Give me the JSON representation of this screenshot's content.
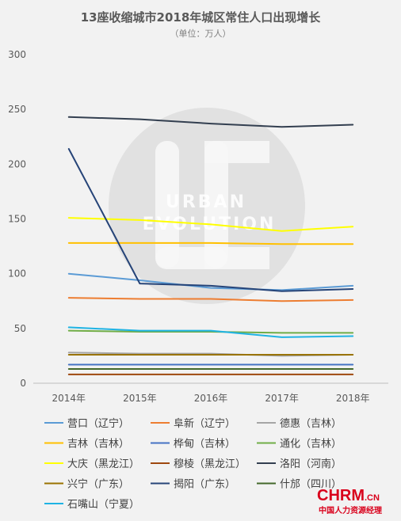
{
  "chart_data": {
    "type": "line",
    "title": "13座收缩城市2018年城区常住人口出现增长",
    "subtitle": "（单位：万人）",
    "categories": [
      "2014年",
      "2015年",
      "2016年",
      "2017年",
      "2018年"
    ],
    "ylim": [
      0,
      300
    ],
    "yticks": [
      0,
      50,
      100,
      150,
      200,
      250,
      300
    ],
    "grid": false,
    "legend_position": "bottom",
    "series": [
      {
        "name": "营口（辽宁）",
        "color": "#5b9bd5",
        "values": [
          100,
          94,
          87,
          85,
          89
        ]
      },
      {
        "name": "阜新（辽宁）",
        "color": "#ed7d31",
        "values": [
          78,
          77,
          77,
          75,
          76
        ]
      },
      {
        "name": "德惠（吉林）",
        "color": "#a5a5a5",
        "values": [
          28,
          27,
          27,
          25,
          26
        ]
      },
      {
        "name": "吉林（吉林）",
        "color": "#ffc000",
        "values": [
          128,
          128,
          128,
          127,
          127
        ]
      },
      {
        "name": "桦甸（吉林）",
        "color": "#4472c4",
        "values": [
          17,
          17,
          17,
          17,
          17
        ]
      },
      {
        "name": "通化（吉林）",
        "color": "#70ad47",
        "values": [
          48,
          47,
          47,
          46,
          46
        ]
      },
      {
        "name": "大庆（黑龙江）",
        "color": "#ffff00",
        "values": [
          151,
          149,
          145,
          139,
          143
        ]
      },
      {
        "name": "穆棱（黑龙江）",
        "color": "#9e480e",
        "values": [
          8,
          8,
          8,
          8,
          8
        ]
      },
      {
        "name": "洛阳（河南）",
        "color": "#333f50",
        "values": [
          243,
          241,
          237,
          234,
          236
        ]
      },
      {
        "name": "兴宁（广东）",
        "color": "#997300",
        "values": [
          26,
          26,
          26,
          26,
          26
        ]
      },
      {
        "name": "揭阳（广东）",
        "color": "#264478",
        "values": [
          214,
          91,
          89,
          84,
          86
        ]
      },
      {
        "name": "什邡（四川）",
        "color": "#43682b",
        "values": [
          13,
          13,
          13,
          13,
          13
        ]
      },
      {
        "name": "石嘴山（宁夏）",
        "color": "#1fb3e3",
        "values": [
          51,
          48,
          48,
          42,
          43
        ]
      }
    ]
  },
  "watermark": {
    "line1": "URBAN",
    "line2": "EVOLUTION"
  },
  "brand": {
    "logo": "CHRM",
    "suffix": ".CN",
    "tagline": "中国人力资源经理",
    "color": "#d9001b"
  }
}
